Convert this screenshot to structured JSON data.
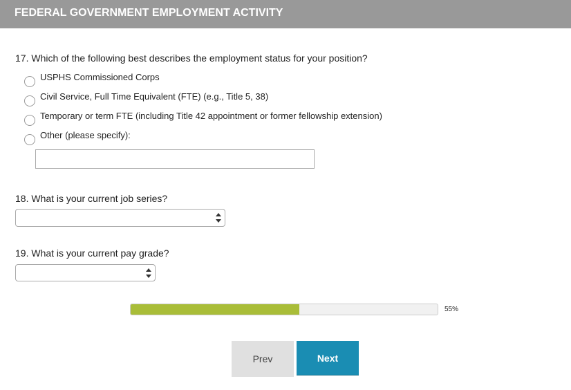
{
  "header": {
    "title": "FEDERAL GOVERNMENT EMPLOYMENT ACTIVITY"
  },
  "q17": {
    "label": "17. Which of the following best describes the employment status for your position?",
    "options": [
      "USPHS Commissioned Corps",
      "Civil Service, Full Time Equivalent (FTE) (e.g., Title 5, 38)",
      "Temporary or term FTE (including Title 42 appointment or former fellowship extension)",
      "Other (please specify):"
    ],
    "other_value": ""
  },
  "q18": {
    "label": "18. What is your current job series?",
    "value": ""
  },
  "q19": {
    "label": "19. What is your current pay grade?",
    "value": ""
  },
  "progress": {
    "percent": 55,
    "label": "55%",
    "color": "#a9bd38"
  },
  "buttons": {
    "prev": "Prev",
    "next": "Next",
    "next_color": "#1a8db3"
  }
}
